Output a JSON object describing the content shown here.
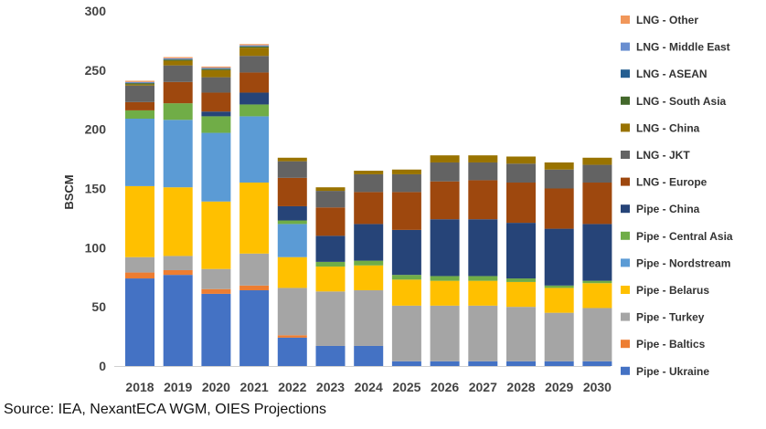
{
  "chart_data": {
    "type": "bar",
    "stacked": true,
    "title": "",
    "xlabel": "",
    "ylabel": "BSCM",
    "ylim": [
      0,
      300
    ],
    "yticks": [
      0,
      50,
      100,
      150,
      200,
      250,
      300
    ],
    "grid": false,
    "legend_position": "right",
    "categories": [
      "2018",
      "2019",
      "2020",
      "2021",
      "2022",
      "2023",
      "2024",
      "2025",
      "2026",
      "2027",
      "2028",
      "2029",
      "2030"
    ],
    "series": [
      {
        "name": "Pipe - Ukraine",
        "color": "#4472C4",
        "values": [
          74,
          77,
          61,
          64,
          24,
          17,
          17,
          4,
          4,
          4,
          4,
          4,
          4
        ]
      },
      {
        "name": "Pipe - Baltics",
        "color": "#ED7D31",
        "values": [
          5,
          4,
          4,
          4,
          2,
          0,
          0,
          0,
          0,
          0,
          0,
          0,
          0
        ]
      },
      {
        "name": "Pipe - Turkey",
        "color": "#A5A5A5",
        "values": [
          13,
          12,
          17,
          27,
          40,
          46,
          47,
          47,
          47,
          47,
          46,
          41,
          45
        ]
      },
      {
        "name": "Pipe - Belarus",
        "color": "#FFC000",
        "values": [
          60,
          58,
          57,
          60,
          26,
          21,
          21,
          22,
          21,
          21,
          21,
          21,
          21
        ]
      },
      {
        "name": "Pipe - Nordstream",
        "color": "#5B9BD5",
        "values": [
          57,
          57,
          58,
          56,
          28,
          0,
          0,
          0,
          0,
          0,
          0,
          0,
          0
        ]
      },
      {
        "name": "Pipe - Central Asia",
        "color": "#70AD47",
        "values": [
          7,
          14,
          14,
          10,
          3,
          4,
          4,
          4,
          4,
          4,
          3,
          2,
          2
        ]
      },
      {
        "name": "Pipe - China",
        "color": "#264478",
        "values": [
          0,
          0,
          4,
          10,
          12,
          22,
          31,
          38,
          48,
          48,
          47,
          48,
          48
        ]
      },
      {
        "name": "LNG - Europe",
        "color": "#9E480E",
        "values": [
          7,
          18,
          16,
          17,
          24,
          24,
          27,
          32,
          32,
          33,
          34,
          34,
          35
        ]
      },
      {
        "name": "LNG - JKT",
        "color": "#636363",
        "values": [
          14,
          14,
          13,
          14,
          14,
          14,
          15,
          15,
          16,
          15,
          16,
          16,
          15
        ]
      },
      {
        "name": "LNG - China",
        "color": "#997300",
        "values": [
          1,
          4,
          6,
          7,
          3,
          3,
          3,
          4,
          6,
          6,
          6,
          6,
          6
        ]
      },
      {
        "name": "LNG - South Asia",
        "color": "#43682B",
        "values": [
          1,
          1,
          1,
          1,
          0,
          0,
          0,
          0,
          0,
          0,
          0,
          0,
          0
        ]
      },
      {
        "name": "LNG - ASEAN",
        "color": "#255E91",
        "values": [
          0,
          0,
          0,
          0,
          0,
          0,
          0,
          0,
          0,
          0,
          0,
          0,
          0
        ]
      },
      {
        "name": "LNG - Middle East",
        "color": "#698ED0",
        "values": [
          1,
          1,
          1,
          1,
          0,
          0,
          0,
          0,
          0,
          0,
          0,
          0,
          0
        ]
      },
      {
        "name": "LNG - Other",
        "color": "#F1975A",
        "values": [
          1,
          1,
          1,
          1,
          0,
          0,
          0,
          0,
          0,
          0,
          0,
          0,
          0
        ]
      }
    ]
  },
  "source_note": "Source: IEA, NexantECA WGM, OIES Projections"
}
